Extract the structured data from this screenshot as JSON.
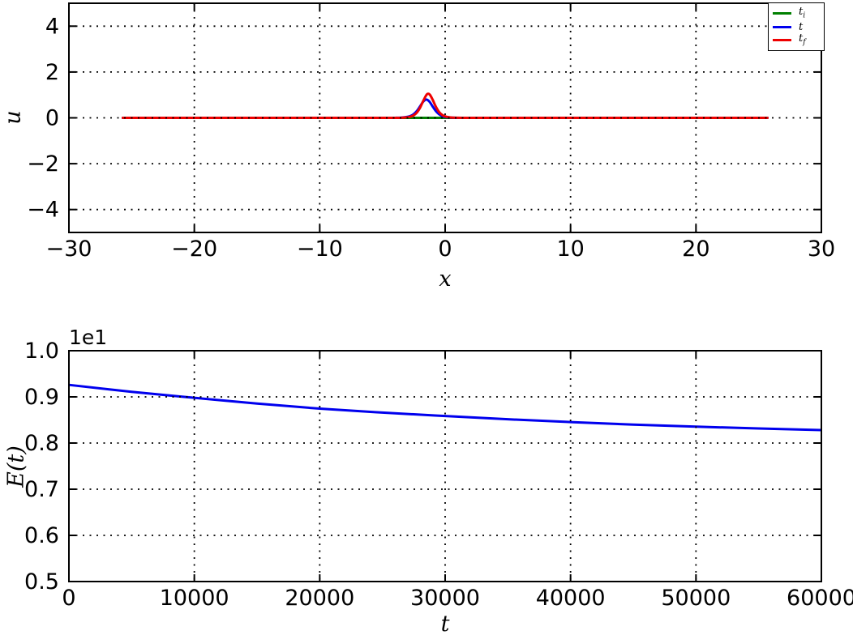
{
  "figure": {
    "background": "#ffffff",
    "grid_color": "#000000",
    "spine_color": "#000000",
    "tick_label_color": "#000000"
  },
  "chart_data": [
    {
      "id": "top-u-vs-x",
      "type": "line",
      "title": "",
      "xlabel": "x",
      "ylabel": "u",
      "xlim": [
        -30,
        30
      ],
      "ylim": [
        -5,
        5
      ],
      "xtick_values": [
        -30,
        -20,
        -10,
        0,
        10,
        20,
        30
      ],
      "xtick_labels": [
        "−30",
        "−20",
        "−10",
        "0",
        "10",
        "20",
        "30"
      ],
      "ytick_values": [
        -4,
        -2,
        0,
        2,
        4
      ],
      "ytick_labels": [
        "−4",
        "−2",
        "0",
        "2",
        "4"
      ],
      "grid": true,
      "legend": {
        "position": "upper-right",
        "entries": [
          "t_i",
          "t",
          "t_f"
        ]
      },
      "series": [
        {
          "name": "t_i",
          "color": "#008000",
          "x": [
            -25.7,
            -20,
            -10,
            -5,
            -2,
            0,
            2,
            5,
            10,
            20,
            25.7
          ],
          "y": [
            0,
            0,
            0,
            0,
            0,
            0,
            0,
            0,
            0,
            0,
            0
          ]
        },
        {
          "name": "t",
          "color": "#0000ee",
          "x": [
            -25.7,
            -8,
            -6,
            -5,
            -4,
            -3.5,
            -3,
            -2.75,
            -2.5,
            -2.25,
            -2,
            -1.75,
            -1.5,
            -1.25,
            -1,
            -0.75,
            -0.5,
            -0.25,
            0,
            0.25,
            0.5,
            1,
            1.5,
            2,
            3,
            5,
            25.7
          ],
          "y": [
            0,
            0,
            0,
            0.001,
            0.002,
            0.01,
            0.043,
            0.085,
            0.164,
            0.301,
            0.499,
            0.706,
            0.8,
            0.706,
            0.499,
            0.301,
            0.164,
            0.085,
            0.043,
            0.021,
            0.01,
            0.002,
            0.001,
            0,
            0,
            0,
            0
          ]
        },
        {
          "name": "t_f",
          "color": "#ee0000",
          "x": [
            -25.7,
            -8,
            -6,
            -5,
            -4,
            -3.5,
            -3,
            -2.75,
            -2.5,
            -2.25,
            -2,
            -1.75,
            -1.5,
            -1.35,
            -1.2,
            -1,
            -0.75,
            -0.5,
            -0.25,
            0,
            0.25,
            0.5,
            1,
            1.5,
            2,
            3,
            5,
            25.7
          ],
          "y": [
            0,
            0,
            0,
            0,
            0.001,
            0.006,
            0.026,
            0.055,
            0.115,
            0.233,
            0.441,
            0.735,
            0.996,
            1.05,
            0.996,
            0.796,
            0.495,
            0.267,
            0.133,
            0.064,
            0.03,
            0.014,
            0.003,
            0.001,
            0,
            0,
            0,
            0
          ]
        }
      ]
    },
    {
      "id": "bottom-E-vs-t",
      "type": "line",
      "title": "",
      "xlabel": "t",
      "ylabel": "E(t)",
      "offset_text": "1e1",
      "xlim": [
        0,
        60000
      ],
      "ylim": [
        5,
        10
      ],
      "xtick_values": [
        0,
        10000,
        20000,
        30000,
        40000,
        50000,
        60000
      ],
      "xtick_labels": [
        "0",
        "10000",
        "20000",
        "30000",
        "40000",
        "50000",
        "60000"
      ],
      "ytick_values": [
        5,
        6,
        7,
        8,
        9,
        10
      ],
      "ytick_labels": [
        "0.5",
        "0.6",
        "0.7",
        "0.8",
        "0.9",
        "1.0"
      ],
      "grid": true,
      "legend": null,
      "series": [
        {
          "name": "E(t)",
          "color": "#0000ee",
          "x": [
            0,
            5000,
            10000,
            15000,
            20000,
            25000,
            30000,
            35000,
            40000,
            45000,
            50000,
            55000,
            60000
          ],
          "y": [
            9.26,
            9.11,
            8.98,
            8.855,
            8.745,
            8.66,
            8.585,
            8.515,
            8.455,
            8.4,
            8.355,
            8.315,
            8.28
          ]
        }
      ]
    }
  ]
}
